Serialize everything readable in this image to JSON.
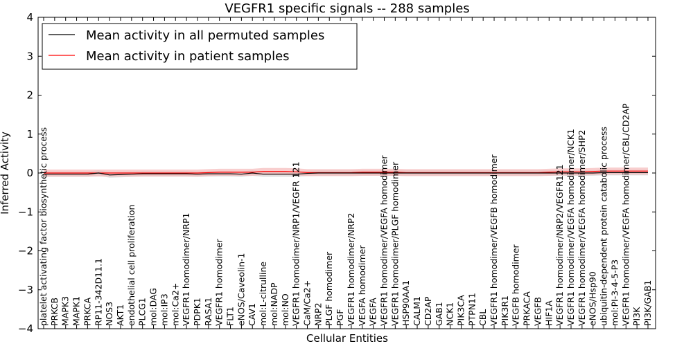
{
  "chart_data": {
    "type": "line",
    "title": "VEGFR1 specific signals -- 288 samples",
    "xlabel": "Cellular Entities",
    "ylabel": "Inferred Activity",
    "ylim": [
      -4,
      4
    ],
    "yticks": [
      -4,
      -3,
      -2,
      -1,
      0,
      1,
      2,
      3,
      4
    ],
    "ytick_labels": [
      "−4",
      "−3",
      "−2",
      "−1",
      "0",
      "1",
      "2",
      "3",
      "4"
    ],
    "legend_position": "upper-left",
    "categories": [
      "platelet activating factor biosynthetic process",
      "PRKCB",
      "MAPK3",
      "MAPK1",
      "PRKCA",
      "RP11-342D11.1",
      "NOS3",
      "AKT1",
      "endothelial cell proliferation",
      "PLCG1",
      "mol:DAG",
      "mol:IP3",
      "mol:Ca2+",
      "VEGFR1 homodimer/NRP1",
      "PDPK1",
      "RASA1",
      "VEGFR1 homodimer",
      "FLT1",
      "eNOS/Caveolin-1",
      "CAV1",
      "mol:L-citrulline",
      "mol:NADP",
      "mol:NO",
      "VEGFR1 homodimer/NRP1/VEGFR 121",
      "CaM/Ca2+",
      "NRP2",
      "PLGF homodimer",
      "PGF",
      "VEGFR1 homodimer/NRP2",
      "VEGFA homodimer",
      "VEGFA",
      "VEGFR1 homodimer/VEGFA homodimer",
      "VEGFR1 homodimer/PLGF homodimer",
      "HSP90AA1",
      "CALM1",
      "CD2AP",
      "GAB1",
      "NCK1",
      "PIK3CA",
      "PTPN11",
      "CBL",
      "VEGFR1 homodimer/VEGFB homodimer",
      "PIK3R1",
      "VEGFB homodimer",
      "PRKACA",
      "VEGFB",
      "HIF1A",
      "VEGFR1 homodimer/NRP2/VEGFR121",
      "VEGFR1 homodimer/VEGFA homodimer/NCK1",
      "VEGFR1 homodimer/VEGFA homodimer/SHP2",
      "eNOS/Hsp90",
      "ubiquitin-dependent protein catabolic process",
      "mol:PI-3-4-5-P3",
      "VEGFR1 homodimer/VEGFA homodimer/CBL/CD2AP",
      "PI3K",
      "PI3K/GAB1"
    ],
    "series": [
      {
        "name": "Mean activity in all permuted samples",
        "color": "#000000",
        "values": [
          -0.03,
          -0.03,
          -0.03,
          -0.03,
          -0.03,
          0.0,
          -0.05,
          -0.04,
          -0.03,
          -0.02,
          -0.02,
          -0.02,
          -0.02,
          -0.02,
          -0.03,
          -0.02,
          -0.02,
          -0.02,
          -0.03,
          0.0,
          -0.03,
          -0.03,
          -0.03,
          -0.03,
          -0.01,
          0.0,
          0.0,
          0.0,
          0.0,
          0.0,
          0.0,
          0.0,
          0.0,
          0.0,
          0.0,
          0.0,
          0.0,
          0.0,
          0.0,
          0.0,
          0.0,
          0.0,
          0.0,
          0.0,
          0.0,
          0.0,
          0.0,
          0.0,
          0.0,
          0.0,
          0.0,
          0.01,
          0.01,
          0.01,
          0.01,
          0.01
        ],
        "band": 0.07,
        "band_color": "#d9d9d9"
      },
      {
        "name": "Mean activity in patient samples",
        "color": "#ff0000",
        "values": [
          0.0,
          0.0,
          0.0,
          0.0,
          0.0,
          0.0,
          0.0,
          0.0,
          0.0,
          0.0,
          0.0,
          0.0,
          0.0,
          0.0,
          0.0,
          0.01,
          0.02,
          0.02,
          0.02,
          0.02,
          0.04,
          0.04,
          0.04,
          0.03,
          0.01,
          0.01,
          0.01,
          0.01,
          0.01,
          0.02,
          0.02,
          0.02,
          0.02,
          0.01,
          0.01,
          0.01,
          0.01,
          0.01,
          0.01,
          0.01,
          0.01,
          0.01,
          0.01,
          0.01,
          0.01,
          0.01,
          0.02,
          0.03,
          0.03,
          0.03,
          0.04,
          0.05,
          0.05,
          0.05,
          0.05,
          0.05
        ],
        "band": 0.09,
        "band_color": "#f4b4b4"
      }
    ]
  }
}
